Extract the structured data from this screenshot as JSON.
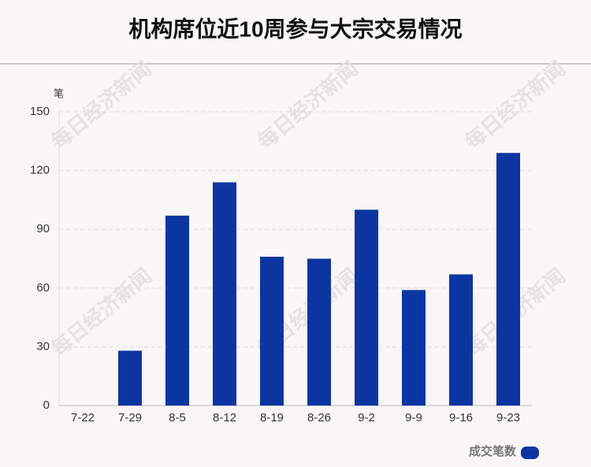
{
  "chart_data": {
    "type": "bar",
    "title": "机构席位近10周参与大宗交易情况",
    "y_unit": "笔",
    "watermark": "每日经济新闻",
    "categories": [
      "7-22",
      "7-29",
      "8-5",
      "8-12",
      "8-19",
      "8-26",
      "9-2",
      "9-9",
      "9-16",
      "9-23"
    ],
    "series": [
      {
        "name": "成交笔数",
        "color": "#0d35a1",
        "values": [
          0,
          28,
          97,
          114,
          76,
          75,
          100,
          59,
          67,
          129
        ]
      }
    ],
    "ylim": [
      0,
      150
    ],
    "yticks": [
      0,
      30,
      60,
      90,
      120,
      150
    ],
    "grid": true,
    "legend": "bottom-right"
  }
}
